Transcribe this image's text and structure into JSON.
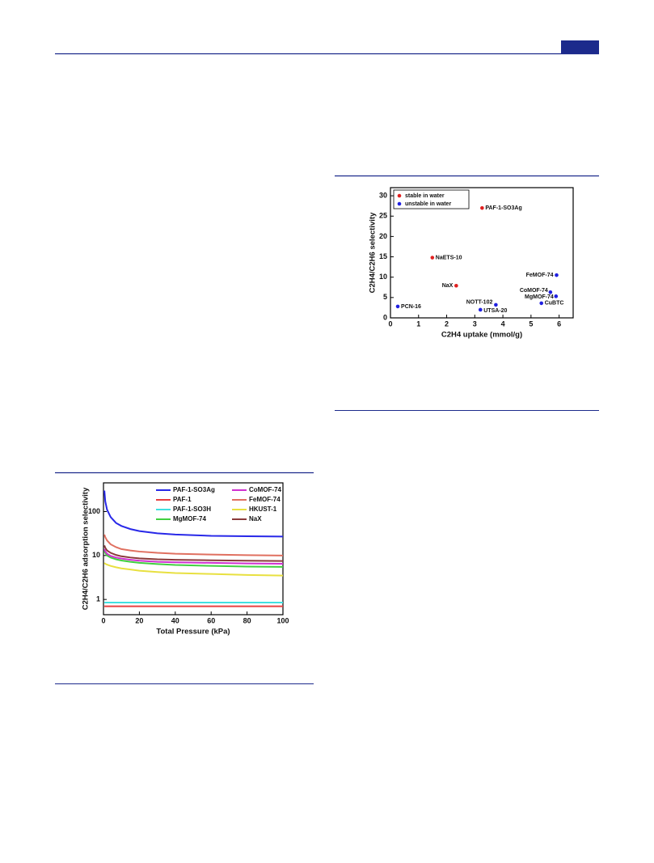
{
  "chart_data": [
    {
      "type": "scatter",
      "xlabel": "C2H4 uptake (mmol/g)",
      "ylabel": "C2H4/C2H6 selectivity",
      "xlim": [
        0,
        6.5
      ],
      "ylim": [
        0,
        32
      ],
      "xticks": [
        0,
        1,
        2,
        3,
        4,
        5,
        6
      ],
      "yticks": [
        0,
        5,
        10,
        15,
        20,
        25,
        30
      ],
      "legend": "upper left",
      "series": [
        {
          "name": "stable in water",
          "color": "#e02020",
          "x": [
            2.34,
            1.49,
            3.26
          ],
          "values": [
            7.9,
            14.8,
            27.0
          ],
          "labels": [
            "NaX",
            "NaETS-10",
            "PAF-1-SO3Ag"
          ]
        },
        {
          "name": "unstable in water",
          "color": "#2020e0",
          "x": [
            0.26,
            3.2,
            3.75,
            5.91,
            5.69,
            5.89,
            5.37
          ],
          "values": [
            2.8,
            2.0,
            3.2,
            10.5,
            6.3,
            5.3,
            3.6
          ],
          "labels": [
            "PCN-16",
            "UTSA-20",
            "NOTT-102",
            "FeMOF-74",
            "CoMOF-74",
            "MgMOF-74",
            "CuBTC"
          ]
        }
      ]
    },
    {
      "type": "line",
      "xlabel": "Total Pressure (kPa)",
      "ylabel": "C2H4/C2H6 adsorption selectivity",
      "xlim": [
        0,
        100
      ],
      "ylim": [
        0.45,
        450
      ],
      "log_y": true,
      "xticks": [
        0,
        20,
        40,
        60,
        80,
        100
      ],
      "yticks": [
        1,
        10,
        100
      ],
      "legend": "upper right",
      "legend_columns": 2,
      "x": [
        0.5,
        1,
        2,
        4,
        7,
        10,
        15,
        20,
        30,
        40,
        60,
        80,
        100
      ],
      "series": [
        {
          "name": "PAF-1-SO3Ag",
          "color": "#2828e8",
          "values": [
            300,
            170,
            110,
            75,
            55,
            47,
            40,
            36,
            32,
            30,
            28,
            27.5,
            27
          ]
        },
        {
          "name": "PAF-1",
          "color": "#e84040",
          "values": [
            0.7,
            0.7,
            0.7,
            0.7,
            0.7,
            0.7,
            0.7,
            0.7,
            0.7,
            0.7,
            0.7,
            0.7,
            0.7
          ]
        },
        {
          "name": "PAF-1-SO3H",
          "color": "#40e0e0",
          "values": [
            0.85,
            0.85,
            0.85,
            0.85,
            0.85,
            0.85,
            0.85,
            0.85,
            0.85,
            0.85,
            0.85,
            0.85,
            0.85
          ]
        },
        {
          "name": "MgMOF-74",
          "color": "#40d040",
          "values": [
            13,
            11.5,
            10,
            9,
            8.2,
            7.7,
            7.2,
            6.8,
            6.4,
            6.1,
            5.8,
            5.6,
            5.5
          ]
        },
        {
          "name": "CoMOF-74",
          "color": "#d030d0",
          "values": [
            14,
            12.5,
            11,
            9.8,
            9,
            8.5,
            8,
            7.6,
            7.2,
            7,
            6.8,
            6.6,
            6.5
          ]
        },
        {
          "name": "FeMOF-74",
          "color": "#e07060",
          "values": [
            30,
            26,
            22,
            18,
            15.5,
            14,
            13,
            12.3,
            11.5,
            11,
            10.5,
            10.2,
            10
          ]
        },
        {
          "name": "HKUST-1",
          "color": "#e8e040",
          "values": [
            6.8,
            6.5,
            6.2,
            5.8,
            5.4,
            5.1,
            4.8,
            4.5,
            4.2,
            4,
            3.8,
            3.6,
            3.5
          ]
        },
        {
          "name": "NaX",
          "color": "#8b3a3a",
          "values": [
            17,
            15,
            13,
            11.5,
            10.3,
            9.6,
            9,
            8.6,
            8.2,
            8,
            7.8,
            7.6,
            7.5
          ]
        }
      ]
    }
  ]
}
